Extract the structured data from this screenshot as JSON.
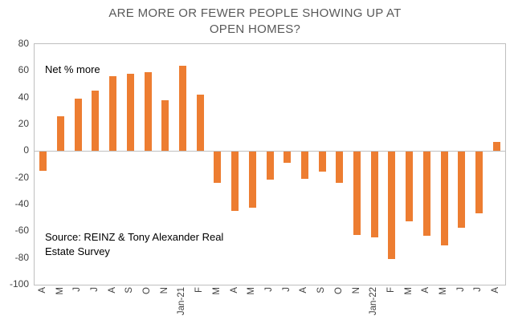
{
  "title": "ARE MORE OR FEWER PEOPLE SHOWING UP AT OPEN HOMES?",
  "annotations": {
    "net_label": "Net % more",
    "source": "Source: REINZ & Tony Alexander Real Estate Survey"
  },
  "chart_data": {
    "type": "bar",
    "title": "ARE MORE OR FEWER PEOPLE SHOWING UP AT OPEN HOMES?",
    "categories": [
      "A",
      "M",
      "J",
      "J",
      "A",
      "S",
      "O",
      "N",
      "Jan-21",
      "F",
      "M",
      "A",
      "M",
      "J",
      "J",
      "A",
      "S",
      "O",
      "N",
      "Jan-22",
      "F",
      "M",
      "A",
      "M",
      "J",
      "J",
      "A"
    ],
    "values": [
      -14,
      26,
      39,
      45,
      56,
      58,
      59,
      38,
      64,
      42,
      -23,
      -44,
      -42,
      -21,
      -8,
      -20,
      -15,
      -23,
      -62,
      -64,
      -80,
      -52,
      -63,
      -70,
      -57,
      -46,
      7
    ],
    "xlabel": "",
    "ylabel": "",
    "ylim": [
      -100,
      80
    ],
    "yticks": [
      80,
      60,
      40,
      20,
      0,
      -20,
      -40,
      -60,
      -80,
      -100
    ],
    "bar_color": "#ED7D31",
    "grid": false,
    "legend": false,
    "annotations": [
      "Net % more",
      "Source: REINZ & Tony Alexander Real Estate Survey"
    ]
  },
  "colors": {
    "bar": "#ED7D31",
    "title_text": "#595959",
    "axis_text": "#404040",
    "plot_border": "#BFBFBF",
    "background": "#FFFFFF"
  }
}
